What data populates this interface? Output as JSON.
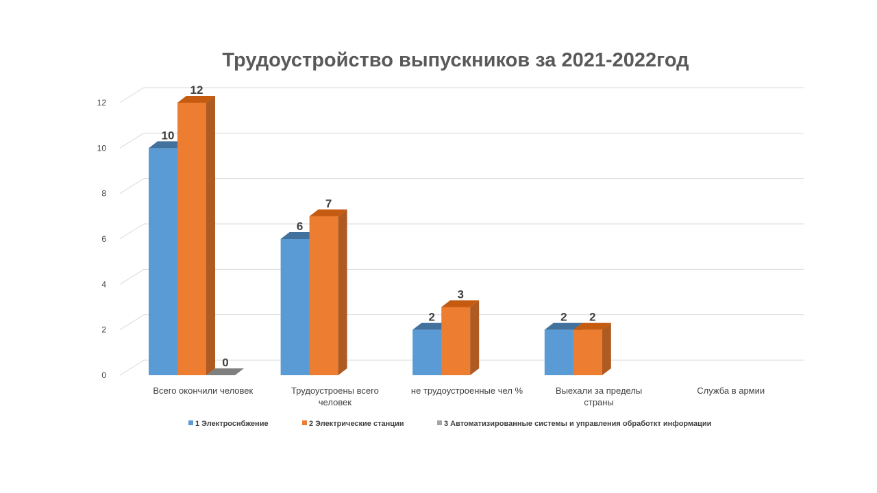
{
  "chart_data": {
    "type": "bar",
    "title": "Трудоустройство выпускников за 2021-2022год",
    "xlabel": "",
    "ylabel": "",
    "ylim": [
      0,
      12
    ],
    "yticks": [
      0,
      2,
      4,
      6,
      8,
      10,
      12
    ],
    "grid": true,
    "legend_position": "bottom",
    "three_d": true,
    "categories": [
      [
        "Всего окончили человек"
      ],
      [
        "Трудоустроены всего",
        "человек"
      ],
      [
        "не трудоустроенные чел %"
      ],
      [
        "Выехали за пределы",
        "страны"
      ],
      [
        "Служба в армии"
      ]
    ],
    "series": [
      {
        "name": "1 Электроснбжение",
        "color": "#5B9BD5",
        "top_color": "#41719C",
        "side_color": "#3A6A95",
        "values": [
          10,
          6,
          2,
          2,
          null
        ]
      },
      {
        "name": "2 Электрические станции",
        "color": "#ED7D31",
        "top_color": "#C55A11",
        "side_color": "#AE5A21",
        "values": [
          12,
          7,
          3,
          2,
          null
        ]
      },
      {
        "name": "3 Автоматизированные системы и управления обработкт информации",
        "color": "#A5A5A5",
        "top_color": "#7F7F7F",
        "side_color": "#8A8A8A",
        "values": [
          0,
          null,
          null,
          null,
          null
        ]
      }
    ]
  }
}
